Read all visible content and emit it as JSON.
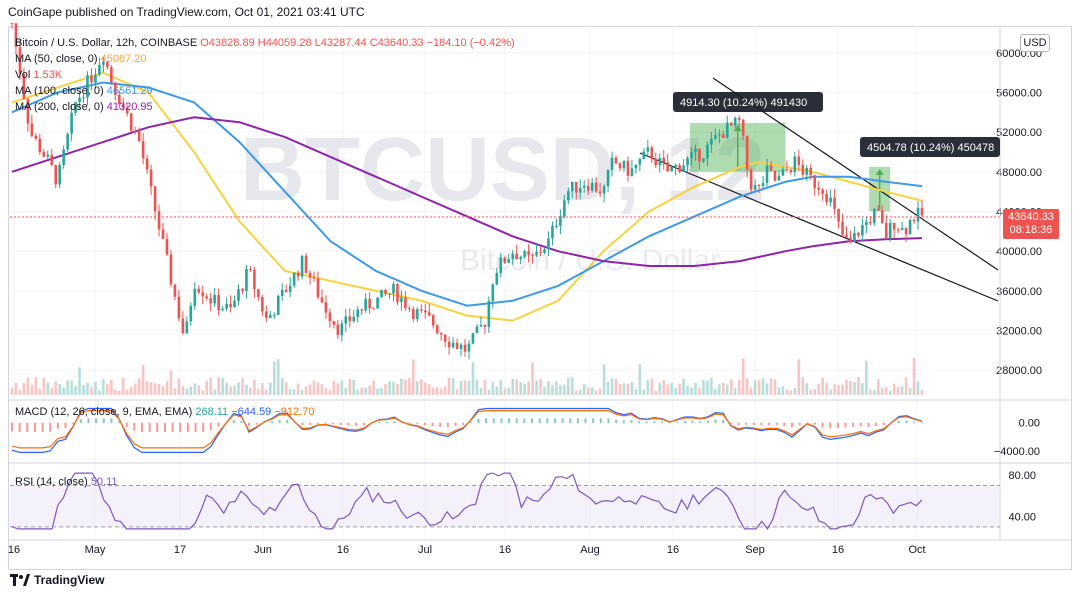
{
  "publisher_text": "CoinGape published on TradingView.com, Oct 01, 2021 03:41 UTC",
  "watermark": "BTCUSD, 12",
  "watermark_sub": "Bitcoin / U.S. Dollar",
  "symbol_header": {
    "title": "Bitcoin / U.S. Dollar, 12h, COINBASE",
    "open": "O43828.89",
    "high": "H44059.28",
    "low": "L43287.44",
    "close": "C43640.33",
    "change": "−184.10 (−0.42%)"
  },
  "indicators": [
    {
      "label": "MA (50, close, 0)",
      "value": "45087.20",
      "color": "#f7d23e"
    },
    {
      "label": "Vol",
      "value": "1.53K",
      "color": "#ef5350"
    },
    {
      "label": "MA (100, close, 0)",
      "value": "46561.29",
      "color": "#3d9ae8"
    },
    {
      "label": "MA (200, close, 0)",
      "value": "41320.95",
      "color": "#9c27b0"
    }
  ],
  "currency_button": "USD",
  "last_price": {
    "value": "43640.33",
    "countdown": "08:18:36",
    "color": "#ef5350"
  },
  "annotations": [
    {
      "text": "4914.30 (10.24%) 491430"
    },
    {
      "text": "4504.78 (10.24%) 450478"
    }
  ],
  "macd": {
    "label": "MACD (12, 26, close, 9, EMA, EMA)",
    "v1": "268.11",
    "v2": "−644.59",
    "v3": "−912.70",
    "ticks": [
      "0.00",
      "−4000.00"
    ]
  },
  "rsi": {
    "label": "RSI (14, close)",
    "value": "50.11",
    "ticks": [
      "80.00",
      "40.00"
    ]
  },
  "branding": "TradingView",
  "colors": {
    "up": "#26a69a",
    "down": "#ef5350",
    "ma50": "#f7d23e",
    "ma100": "#3d9ae8",
    "ma200": "#8e24aa",
    "projection": "#4caf50",
    "macd_line": "#2962ff",
    "signal_line": "#ff6d00",
    "rsi_line": "#7e57c2"
  },
  "chart_data": {
    "type": "line",
    "title": "Bitcoin / U.S. Dollar, 12h, COINBASE",
    "x_ticks": [
      "16",
      "May",
      "17",
      "Jun",
      "16",
      "Jul",
      "16",
      "Aug",
      "16",
      "Sep",
      "16",
      "Oct"
    ],
    "y_ticks": [
      60000,
      56000,
      52000,
      48000,
      44000,
      40000,
      36000,
      32000,
      28000
    ],
    "ylim": [
      25500,
      62500
    ],
    "x_range": [
      0,
      100
    ],
    "series": [
      {
        "name": "Bitcoin / U.S. Dollar, 12h, COINBASE",
        "x": [
          0,
          2,
          4,
          5,
          7,
          9,
          10,
          11,
          12,
          14,
          16,
          18,
          19,
          20,
          22,
          24,
          26,
          28,
          30,
          32,
          33,
          34,
          36,
          38,
          40,
          42,
          44,
          46,
          48,
          50,
          52,
          53,
          55,
          57,
          59,
          61,
          63,
          65,
          66,
          68,
          70,
          72,
          74,
          76,
          78,
          80,
          81,
          82,
          83,
          84,
          85,
          86,
          87,
          88,
          89,
          90,
          91,
          92,
          93,
          94,
          95,
          96,
          97,
          98,
          99,
          100
        ],
        "y": [
          63000,
          52000,
          49000,
          47000,
          55000,
          58000,
          60000,
          57000,
          55000,
          51000,
          43000,
          35000,
          31000,
          37000,
          35000,
          34000,
          38000,
          33000,
          36000,
          39000,
          37000,
          35000,
          32000,
          34000,
          35000,
          36000,
          34000,
          33000,
          31000,
          30000,
          33000,
          38000,
          40000,
          39000,
          41000,
          46000,
          47000,
          46000,
          49000,
          48000,
          50000,
          48000,
          49000,
          50000,
          52000,
          53000,
          47000,
          46000,
          48000,
          47000,
          48000,
          49000,
          48000,
          47000,
          46500,
          45000,
          42000,
          40500,
          42000,
          43000,
          44000,
          41500,
          43000,
          42000,
          43500,
          43640
        ]
      },
      {
        "name": "MA (50, close, 0)",
        "x": [
          0,
          5,
          10,
          15,
          20,
          25,
          30,
          35,
          40,
          45,
          50,
          55,
          60,
          65,
          70,
          75,
          80,
          82,
          85,
          88,
          92,
          96,
          100
        ],
        "y": [
          55000,
          56500,
          58000,
          56000,
          50000,
          43000,
          38000,
          37000,
          36000,
          35000,
          33500,
          33000,
          35000,
          40000,
          44000,
          46500,
          48500,
          49000,
          48500,
          48000,
          47000,
          46000,
          45087
        ]
      },
      {
        "name": "MA (100, close, 0)",
        "x": [
          0,
          5,
          10,
          15,
          20,
          25,
          30,
          35,
          40,
          45,
          50,
          55,
          60,
          65,
          70,
          75,
          80,
          85,
          88,
          92,
          96,
          100
        ],
        "y": [
          54000,
          56000,
          57000,
          56500,
          55000,
          51000,
          46000,
          41000,
          38000,
          36000,
          34500,
          35000,
          36500,
          39000,
          41500,
          43500,
          45500,
          47000,
          47500,
          47500,
          47000,
          46561
        ]
      },
      {
        "name": "MA (200, close, 0)",
        "x": [
          0,
          5,
          10,
          15,
          20,
          25,
          30,
          35,
          40,
          45,
          50,
          55,
          60,
          65,
          70,
          75,
          80,
          85,
          88,
          92,
          96,
          100
        ],
        "y": [
          48000,
          49500,
          51000,
          52500,
          53500,
          53000,
          51500,
          49500,
          47500,
          45500,
          43500,
          41500,
          40000,
          39000,
          38500,
          38500,
          39000,
          40000,
          40500,
          41000,
          41200,
          41321
        ]
      }
    ],
    "projections": [
      {
        "label": "4914.30 (10.24%) 491430",
        "x0": 74.5,
        "x1": 85,
        "y0": 48000,
        "y1": 52914
      },
      {
        "label": "4504.78 (10.24%) 450478",
        "x0": 94.2,
        "x1": 96.5,
        "y0": 44000,
        "y1": 48505
      }
    ],
    "macd": {
      "ticks": [
        0,
        -4000
      ],
      "ylim": [
        -5000,
        2500
      ]
    },
    "rsi": {
      "ticks": [
        80,
        40
      ],
      "ylim": [
        25,
        85
      ],
      "bands": [
        70,
        30
      ]
    }
  }
}
